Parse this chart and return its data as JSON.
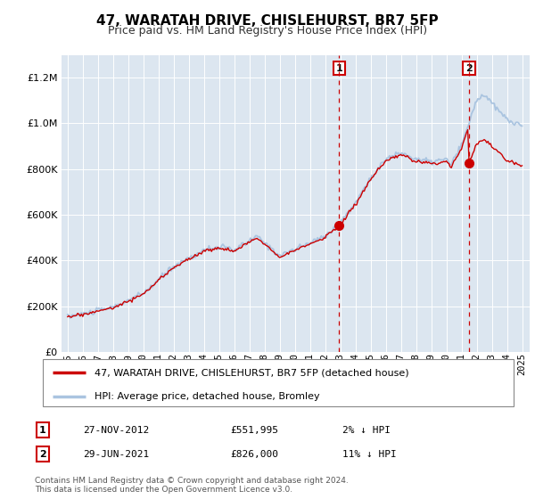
{
  "title": "47, WARATAH DRIVE, CHISLEHURST, BR7 5FP",
  "subtitle": "Price paid vs. HM Land Registry's House Price Index (HPI)",
  "legend_label_red": "47, WARATAH DRIVE, CHISLEHURST, BR7 5FP (detached house)",
  "legend_label_blue": "HPI: Average price, detached house, Bromley",
  "annotation1_date": "27-NOV-2012",
  "annotation1_price": "£551,995",
  "annotation1_hpi": "2% ↓ HPI",
  "annotation2_date": "29-JUN-2021",
  "annotation2_price": "£826,000",
  "annotation2_hpi": "11% ↓ HPI",
  "footnote": "Contains HM Land Registry data © Crown copyright and database right 2024.\nThis data is licensed under the Open Government Licence v3.0.",
  "sale1_year": 2012.92,
  "sale1_value": 551995,
  "sale2_year": 2021.49,
  "sale2_value": 826000,
  "ylim_min": 0,
  "ylim_max": 1300000,
  "background_color": "#dce6f0",
  "red_line_color": "#cc0000",
  "hpi_line_color": "#aac4e0"
}
